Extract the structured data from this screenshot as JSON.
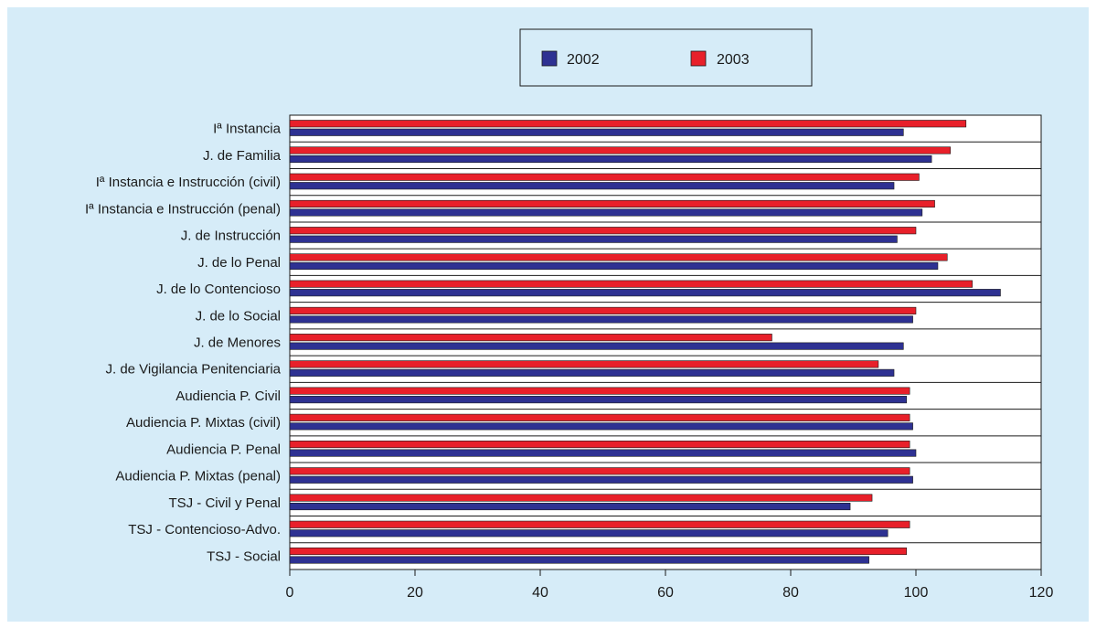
{
  "chart_data": {
    "type": "bar",
    "orientation": "horizontal",
    "categories": [
      "Iª Instancia",
      "J. de Familia",
      "Iª Instancia e Instrucción (civil)",
      "Iª Instancia e Instrucción (penal)",
      "J. de Instrucción",
      "J. de lo Penal",
      "J. de lo Contencioso",
      "J. de lo Social",
      "J. de Menores",
      "J. de Vigilancia Penitenciaria",
      "Audiencia P. Civil",
      "Audiencia P. Mixtas (civil)",
      "Audiencia P. Penal",
      "Audiencia P. Mixtas (penal)",
      "TSJ - Civil y Penal",
      "TSJ - Contencioso-Advo.",
      "TSJ - Social"
    ],
    "series": [
      {
        "name": "2003",
        "color": "#e8202a",
        "values": [
          108,
          105.5,
          100.5,
          103,
          100,
          105,
          109,
          100,
          77,
          94,
          99,
          99,
          99,
          99,
          93,
          99,
          98.5
        ]
      },
      {
        "name": "2002",
        "color": "#2e3192",
        "values": [
          98,
          102.5,
          96.5,
          101,
          97,
          103.5,
          113.5,
          99.5,
          98,
          96.5,
          98.5,
          99.5,
          100,
          99.5,
          89.5,
          95.5,
          92.5
        ]
      }
    ],
    "legend_order": [
      "2002",
      "2003"
    ],
    "xlim": [
      0,
      120
    ],
    "xticks": [
      0,
      20,
      40,
      60,
      80,
      100,
      120
    ],
    "xticks_labels": [
      "0",
      "20",
      "40",
      "60",
      "80",
      "100",
      "120"
    ],
    "grid": "horizontal category separators",
    "legend_position": "top-center",
    "background_color": "#d6ecf8",
    "plot_color": "#ffffff"
  }
}
